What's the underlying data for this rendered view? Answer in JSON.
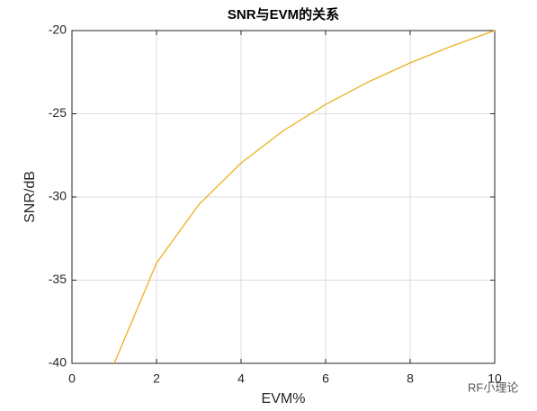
{
  "chart_data": {
    "type": "line",
    "title": "SNR与EVM的关系",
    "xlabel": "EVM%",
    "ylabel": "SNR/dB",
    "x": [
      1,
      2,
      3,
      4,
      5,
      6,
      7,
      8,
      9,
      10
    ],
    "series": [
      {
        "name": "SNR",
        "color": "#EDB120",
        "values": [
          -40,
          -33.98,
          -30.46,
          -27.96,
          -26.02,
          -24.44,
          -23.1,
          -21.94,
          -20.92,
          -20
        ]
      }
    ],
    "xlim": [
      0,
      10
    ],
    "ylim": [
      -40,
      -20
    ],
    "xticks": [
      0,
      2,
      4,
      6,
      8,
      10
    ],
    "yticks": [
      -40,
      -35,
      -30,
      -25,
      -20
    ],
    "grid": true,
    "watermark": "RF小理论"
  }
}
